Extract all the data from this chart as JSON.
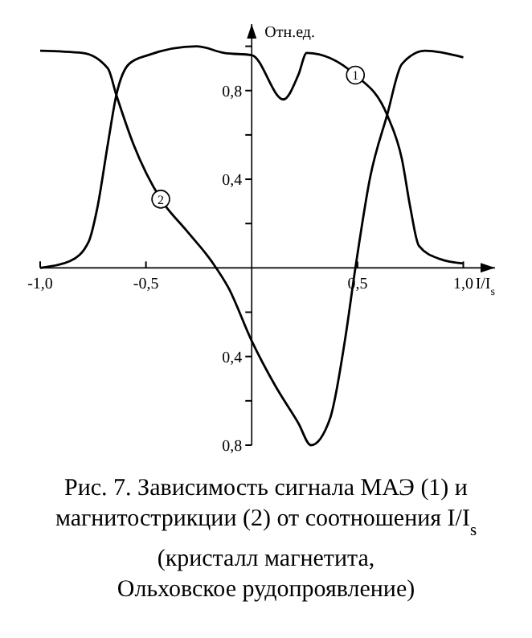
{
  "chart_data": {
    "type": "line",
    "title": "Рис. 7. Зависимость сигнала МАЭ (1) и магнитострикции (2) от соотношения I/I$_{s}$",
    "subtitle": "(кристалл магнетита, Ольховское рудопроявление)",
    "xlabel": "I/I$_{s}$",
    "ylabel": "Отн.ед.",
    "xlim": [
      -1.0,
      1.15
    ],
    "xticks": [
      {
        "value": -1.0,
        "label": "-1,0"
      },
      {
        "value": -0.5,
        "label": "-0,5"
      },
      {
        "value": 0.5,
        "label": "0,5"
      },
      {
        "value": 1.0,
        "label": "1,0"
      }
    ],
    "ylim": [
      -0.8,
      1.1
    ],
    "yticks": [
      {
        "value": -0.8,
        "label": "0,8"
      },
      {
        "value": -0.6,
        "label": null
      },
      {
        "value": -0.4,
        "label": "0,4"
      },
      {
        "value": -0.2,
        "label": null
      },
      {
        "value": 0.2,
        "label": null
      },
      {
        "value": 0.4,
        "label": "0,4"
      },
      {
        "value": 0.6,
        "label": null
      },
      {
        "value": 0.8,
        "label": "0,8"
      },
      {
        "value": 1.0,
        "label": null
      }
    ],
    "grid": false,
    "marker": "none",
    "line_style": "solid",
    "series": [
      {
        "color": "#000000",
        "x": [
          -1.0,
          -0.86,
          -0.77,
          -0.73,
          -0.68,
          -0.64,
          -0.58,
          -0.49,
          -0.26,
          -0.13,
          0.0,
          0.15,
          0.22,
          0.26,
          0.49,
          0.64,
          0.71,
          0.75,
          0.79,
          0.89,
          1.0
        ],
        "values": [
          0.0,
          0.03,
          0.12,
          0.27,
          0.56,
          0.78,
          0.92,
          0.96,
          1.0,
          0.97,
          0.96,
          0.76,
          0.87,
          0.97,
          0.87,
          0.69,
          0.49,
          0.27,
          0.1,
          0.04,
          0.02
        ]
      },
      {
        "color": "#000000",
        "x": [
          -1.0,
          -0.8,
          -0.68,
          -0.64,
          -0.56,
          -0.43,
          -0.31,
          -0.19,
          -0.11,
          0.0,
          0.11,
          0.22,
          0.28,
          0.37,
          0.44,
          0.49,
          0.56,
          0.64,
          0.71,
          0.82,
          1.0
        ],
        "values": [
          0.98,
          0.97,
          0.9,
          0.78,
          0.56,
          0.31,
          0.17,
          0.03,
          -0.09,
          -0.33,
          -0.53,
          -0.7,
          -0.8,
          -0.68,
          -0.33,
          0.0,
          0.41,
          0.69,
          0.92,
          0.98,
          0.95
        ]
      }
    ],
    "annotations": [
      {
        "text": "1",
        "x": 0.49,
        "y": 0.87
      },
      {
        "text": "2",
        "x": -0.43,
        "y": 0.31
      }
    ]
  }
}
